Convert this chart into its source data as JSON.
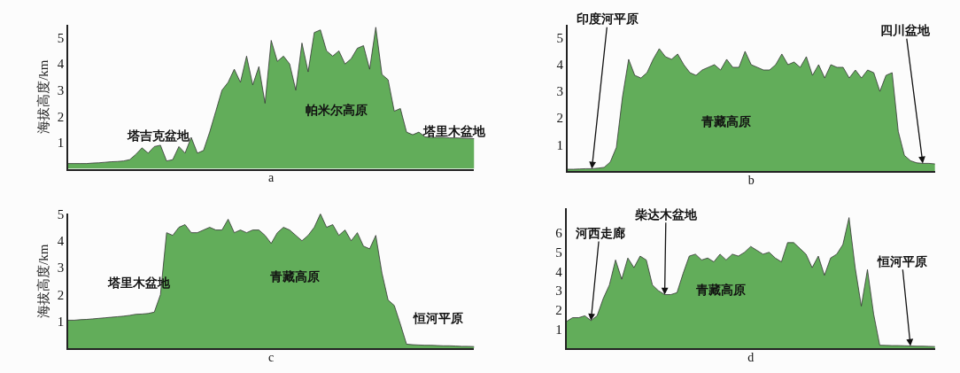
{
  "chart_data": [
    {
      "type": "area",
      "xlabel": "a",
      "ylabel": "海拔高度/km",
      "ylim": [
        0,
        5.5
      ],
      "yticks": [
        1,
        2,
        3,
        4,
        5
      ],
      "tick_labels": "y",
      "annotations": [
        "塔吉克盆地",
        "帕米尔高原",
        "塔里木盆地"
      ],
      "categories": [
        null,
        null,
        null,
        null,
        null,
        null,
        null,
        null,
        null,
        null,
        null,
        null,
        null,
        null,
        null,
        null,
        null,
        null,
        null,
        null,
        null,
        null,
        null,
        null,
        null,
        null,
        null,
        null,
        null,
        null,
        null,
        null,
        null,
        null,
        null,
        null,
        null,
        null,
        null,
        null,
        null,
        null,
        null,
        null,
        null,
        null,
        null,
        null,
        null,
        null,
        null,
        null,
        null,
        null,
        null,
        null,
        null,
        null,
        null,
        null,
        null,
        null,
        null,
        null,
        null,
        null,
        null
      ],
      "series": [
        {
          "color": "#62ad5a",
          "values": [
            0.2,
            0.2,
            0.2,
            0.2,
            0.22,
            0.23,
            0.25,
            0.27,
            0.28,
            0.3,
            0.35,
            0.55,
            0.8,
            0.6,
            0.85,
            0.9,
            0.3,
            0.35,
            0.85,
            0.6,
            1.2,
            0.6,
            0.7,
            1.4,
            2.2,
            3.0,
            3.3,
            3.8,
            3.3,
            4.3,
            3.2,
            3.9,
            2.5,
            4.9,
            4.1,
            4.3,
            4.0,
            3.0,
            4.8,
            3.7,
            5.2,
            5.3,
            4.5,
            4.3,
            4.5,
            4.0,
            4.2,
            4.6,
            4.7,
            3.8,
            5.4,
            3.6,
            3.4,
            2.2,
            2.3,
            1.4,
            1.3,
            1.4,
            1.22,
            1.2,
            1.2,
            1.2,
            1.18,
            1.18,
            1.17,
            1.16,
            1.15
          ]
        }
      ]
    },
    {
      "type": "area",
      "xlabel": "b",
      "ylim": [
        0,
        5.5
      ],
      "yticks": [
        1,
        2,
        3,
        4,
        5
      ],
      "tick_labels": "y",
      "annotations": [
        "印度河平原",
        "四川盆地",
        "青藏高原"
      ],
      "categories": [
        null,
        null,
        null,
        null,
        null,
        null,
        null,
        null,
        null,
        null,
        null,
        null,
        null,
        null,
        null,
        null,
        null,
        null,
        null,
        null,
        null,
        null,
        null,
        null,
        null,
        null,
        null,
        null,
        null,
        null,
        null,
        null,
        null,
        null,
        null,
        null,
        null,
        null,
        null,
        null,
        null,
        null,
        null,
        null,
        null,
        null,
        null,
        null,
        null,
        null,
        null,
        null,
        null,
        null,
        null,
        null,
        null,
        null,
        null,
        null,
        null
      ],
      "series": [
        {
          "color": "#62ad5a",
          "values": [
            0.08,
            0.08,
            0.09,
            0.1,
            0.1,
            0.12,
            0.15,
            0.35,
            0.9,
            2.8,
            4.2,
            3.6,
            3.5,
            3.7,
            4.2,
            4.6,
            4.3,
            4.2,
            4.4,
            4.0,
            3.7,
            3.6,
            3.8,
            3.9,
            4.0,
            3.8,
            4.2,
            3.9,
            3.9,
            4.5,
            4.0,
            3.9,
            3.8,
            3.8,
            4.0,
            4.4,
            4.0,
            4.1,
            3.9,
            4.3,
            3.6,
            4.0,
            3.5,
            4.0,
            3.9,
            3.9,
            3.5,
            3.8,
            3.5,
            3.8,
            3.7,
            3.0,
            3.6,
            3.7,
            1.5,
            0.6,
            0.4,
            0.32,
            0.3,
            0.3,
            0.28
          ]
        }
      ]
    },
    {
      "type": "area",
      "xlabel": "c",
      "ylabel": "海拔高度/km",
      "ylim": [
        0,
        5.0
      ],
      "yticks": [
        1,
        2,
        3,
        4,
        5
      ],
      "tick_labels": "y",
      "annotations": [
        "塔里木盆地",
        "青藏高原",
        "恒河平原"
      ],
      "categories": [
        null,
        null,
        null,
        null,
        null,
        null,
        null,
        null,
        null,
        null,
        null,
        null,
        null,
        null,
        null,
        null,
        null,
        null,
        null,
        null,
        null,
        null,
        null,
        null,
        null,
        null,
        null,
        null,
        null,
        null,
        null,
        null,
        null,
        null,
        null,
        null,
        null,
        null,
        null,
        null,
        null,
        null,
        null,
        null,
        null,
        null,
        null,
        null,
        null,
        null,
        null,
        null,
        null,
        null,
        null,
        null,
        null,
        null,
        null,
        null,
        null,
        null,
        null,
        null,
        null,
        null,
        null
      ],
      "series": [
        {
          "color": "#62ad5a",
          "values": [
            1.05,
            1.05,
            1.07,
            1.08,
            1.1,
            1.12,
            1.14,
            1.16,
            1.18,
            1.2,
            1.23,
            1.27,
            1.28,
            1.3,
            1.35,
            2.0,
            4.3,
            4.2,
            4.5,
            4.6,
            4.3,
            4.3,
            4.4,
            4.5,
            4.4,
            4.4,
            4.8,
            4.3,
            4.4,
            4.3,
            4.4,
            4.4,
            4.2,
            3.9,
            4.3,
            4.5,
            4.4,
            4.2,
            4.0,
            4.2,
            4.5,
            5.0,
            4.5,
            4.6,
            4.2,
            4.4,
            4.0,
            4.3,
            3.8,
            3.7,
            4.2,
            2.8,
            1.8,
            1.6,
            0.9,
            0.16,
            0.14,
            0.13,
            0.12,
            0.12,
            0.11,
            0.1,
            0.1,
            0.09,
            0.08,
            0.08,
            0.07
          ]
        }
      ]
    },
    {
      "type": "area",
      "xlabel": "d",
      "ylim": [
        0,
        7.3
      ],
      "yticks": [
        1,
        2,
        3,
        4,
        5,
        6
      ],
      "tick_labels": "y",
      "annotations": [
        "河西走廊",
        "柴达木盆地",
        "青藏高原",
        "恒河平原"
      ],
      "categories": [
        null,
        null,
        null,
        null,
        null,
        null,
        null,
        null,
        null,
        null,
        null,
        null,
        null,
        null,
        null,
        null,
        null,
        null,
        null,
        null,
        null,
        null,
        null,
        null,
        null,
        null,
        null,
        null,
        null,
        null,
        null,
        null,
        null,
        null,
        null,
        null,
        null,
        null,
        null,
        null,
        null,
        null,
        null,
        null,
        null,
        null,
        null,
        null,
        null,
        null,
        null,
        null,
        null,
        null,
        null,
        null,
        null,
        null,
        null,
        null,
        null
      ],
      "series": [
        {
          "color": "#62ad5a",
          "values": [
            1.4,
            1.6,
            1.6,
            1.7,
            1.45,
            1.7,
            2.6,
            3.3,
            4.6,
            3.6,
            4.7,
            4.2,
            4.8,
            4.6,
            3.3,
            3.0,
            2.8,
            2.8,
            2.9,
            3.9,
            4.8,
            4.9,
            4.6,
            4.7,
            4.5,
            4.9,
            4.6,
            4.9,
            4.8,
            5.0,
            5.3,
            5.1,
            4.9,
            5.0,
            4.7,
            4.5,
            5.5,
            5.5,
            5.2,
            4.9,
            4.2,
            4.8,
            3.8,
            4.7,
            4.9,
            5.4,
            6.8,
            4.2,
            2.2,
            4.1,
            1.8,
            0.17,
            0.16,
            0.15,
            0.15,
            0.14,
            0.13,
            0.12,
            0.12,
            0.11,
            0.1
          ]
        }
      ]
    }
  ]
}
